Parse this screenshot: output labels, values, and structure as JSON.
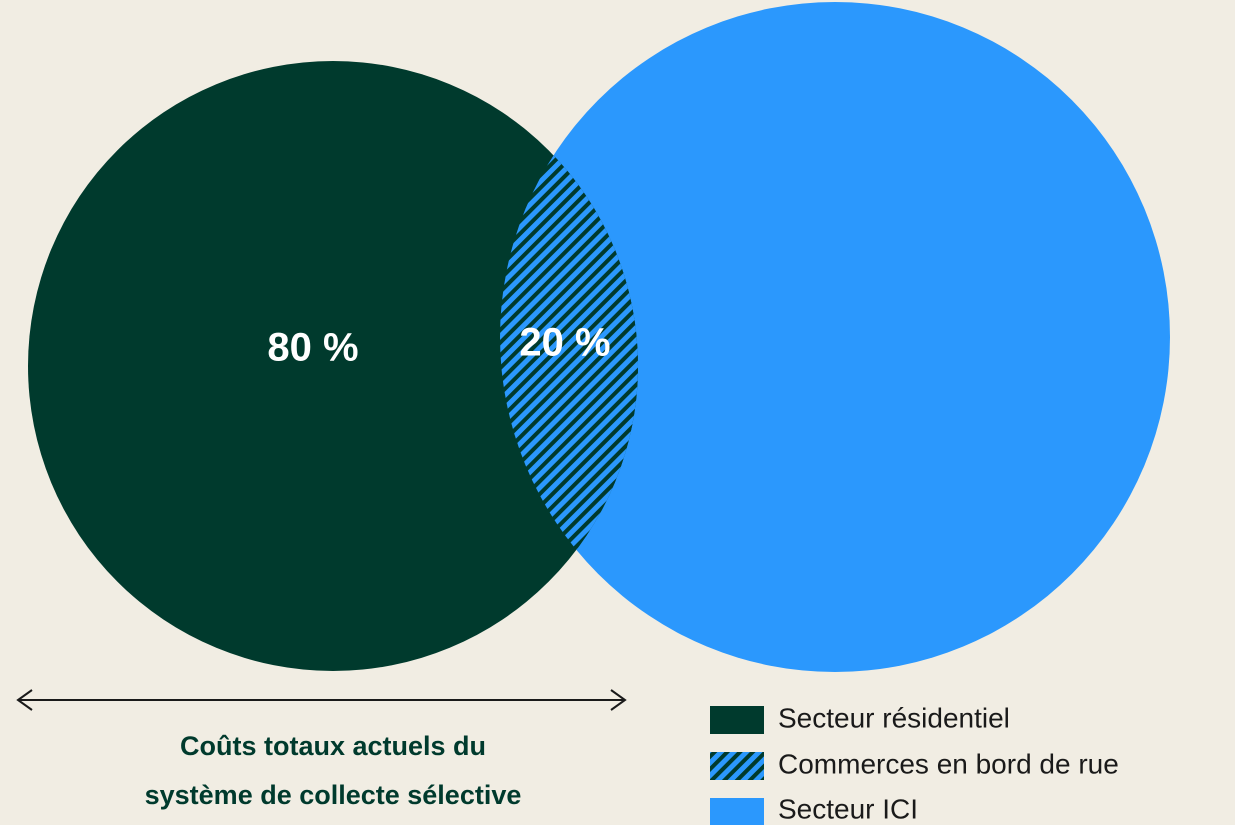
{
  "diagram": {
    "regions": [
      {
        "label": "80 %"
      },
      {
        "label": "20 %"
      }
    ],
    "caption": [
      "Coûts totaux actuels du",
      "système de collecte sélective"
    ],
    "legend": [
      "Secteur résidentiel",
      "Commerces en bord de rue",
      "Secteur ICI"
    ]
  }
}
